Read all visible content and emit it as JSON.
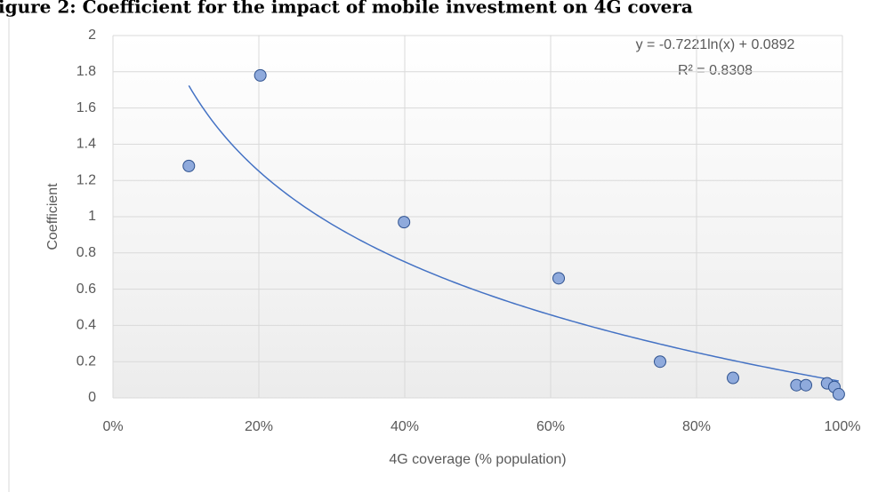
{
  "chart_data": {
    "type": "scatter",
    "title": "igure 2: Coefficient for the impact of mobile investment on 4G covera",
    "x_label": "4G coverage (% population)",
    "y_label": "Coefficient",
    "x": [
      0.104,
      0.202,
      0.399,
      0.611,
      0.75,
      0.85,
      0.937,
      0.95,
      0.979,
      0.989,
      0.995
    ],
    "values": [
      1.28,
      1.78,
      0.97,
      0.66,
      0.2,
      0.11,
      0.07,
      0.07,
      0.08,
      0.06,
      0.02
    ],
    "color": "#8faadc",
    "xlim": [
      0,
      1
    ],
    "ylim": [
      0,
      2
    ],
    "xticks": [
      {
        "value": 0,
        "label": "0%"
      },
      {
        "value": 0.2,
        "label": "20%"
      },
      {
        "value": 0.4,
        "label": "40%"
      },
      {
        "value": 0.6,
        "label": "60%"
      },
      {
        "value": 0.8,
        "label": "80%"
      },
      {
        "value": 1,
        "label": "100%"
      }
    ],
    "yticks": [
      0,
      0.2,
      0.4,
      0.6,
      0.8,
      1,
      1.2,
      1.4,
      1.6,
      1.8,
      2
    ],
    "grid": true,
    "trendline": {
      "type": "log",
      "slope": -0.7221,
      "intercept": 0.0892,
      "color": "#4472c4"
    },
    "annotations": [
      "y = -0.7221ln(x) + 0.0892",
      "R² = 0.8308"
    ]
  }
}
